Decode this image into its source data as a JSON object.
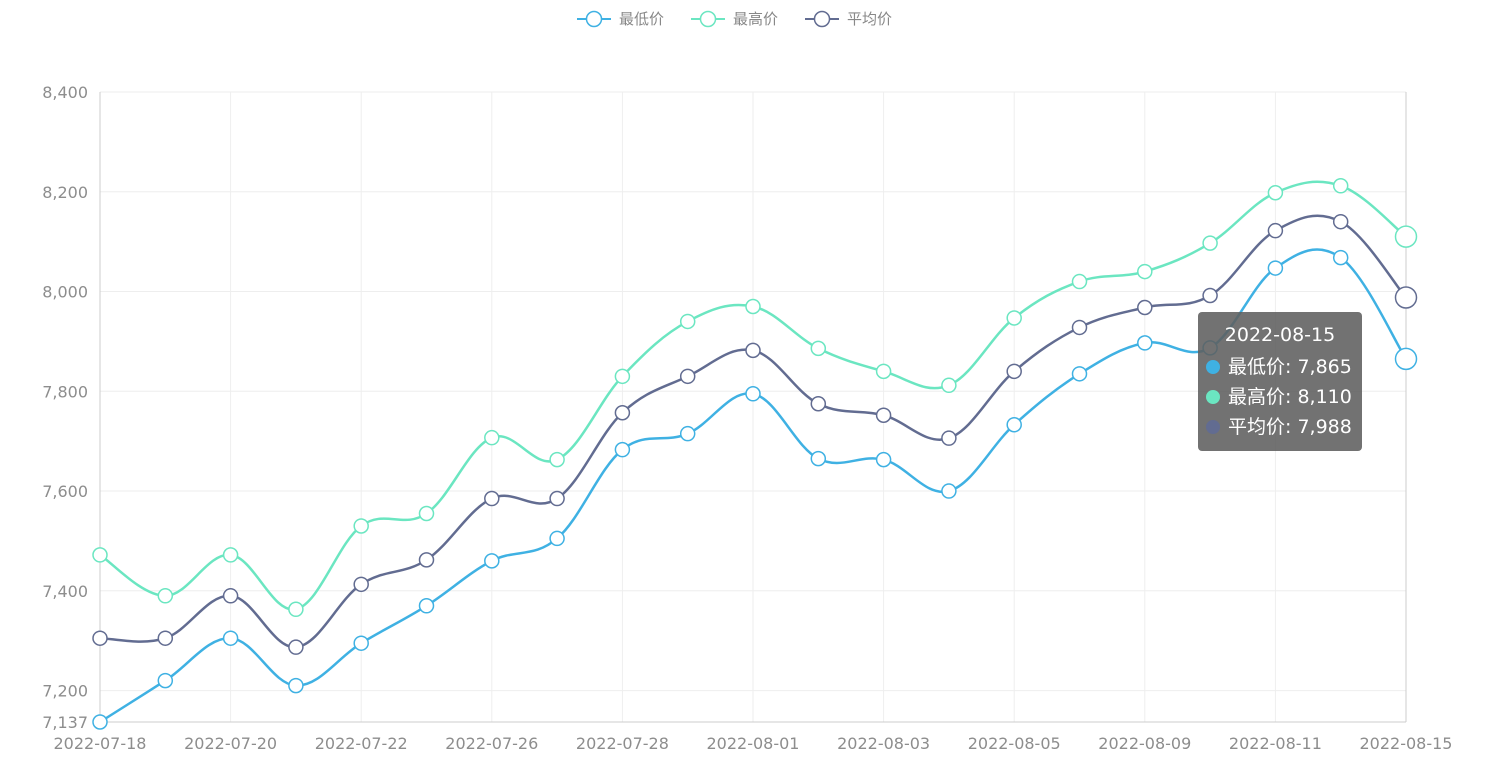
{
  "chart_data": {
    "type": "line",
    "smooth": true,
    "x": [
      "2022-07-18",
      "2022-07-19",
      "2022-07-20",
      "2022-07-21",
      "2022-07-22",
      "2022-07-25",
      "2022-07-26",
      "2022-07-27",
      "2022-07-28",
      "2022-07-29",
      "2022-08-01",
      "2022-08-02",
      "2022-08-03",
      "2022-08-04",
      "2022-08-05",
      "2022-08-08",
      "2022-08-09",
      "2022-08-10",
      "2022-08-11",
      "2022-08-12",
      "2022-08-15"
    ],
    "tick_labels": [
      "2022-07-18",
      "2022-07-20",
      "2022-07-22",
      "2022-07-26",
      "2022-07-28",
      "2022-08-01",
      "2022-08-03",
      "2022-08-05",
      "2022-08-09",
      "2022-08-11",
      "2022-08-15"
    ],
    "ylim": [
      7137,
      8400
    ],
    "y_ticks": [
      7137,
      7200,
      7400,
      7600,
      7800,
      8000,
      8200,
      8400
    ],
    "y_tick_labels": [
      "7,137",
      "7,200",
      "7,400",
      "7,600",
      "7,800",
      "8,000",
      "8,200",
      "8,400"
    ],
    "grid": true,
    "legend_position": "top-center",
    "series": [
      {
        "name": "最低价",
        "color": "#3fb1e3",
        "values": [
          7137,
          7220,
          7305,
          7210,
          7295,
          7370,
          7460,
          7505,
          7683,
          7715,
          7795,
          7665,
          7663,
          7600,
          7733,
          7835,
          7897,
          7887,
          8047,
          8068,
          7865
        ]
      },
      {
        "name": "最高价",
        "color": "#6be6c1",
        "values": [
          7472,
          7390,
          7472,
          7363,
          7530,
          7555,
          7707,
          7663,
          7830,
          7940,
          7970,
          7886,
          7840,
          7812,
          7947,
          8020,
          8040,
          8097,
          8198,
          8212,
          8110
        ]
      },
      {
        "name": "平均价",
        "color": "#626c91",
        "values": [
          7305,
          7305,
          7390,
          7287,
          7413,
          7462,
          7585,
          7585,
          7757,
          7830,
          7882,
          7775,
          7752,
          7706,
          7840,
          7928,
          7968,
          7992,
          8122,
          8140,
          7988
        ]
      }
    ],
    "tooltip": {
      "title": "2022-08-15",
      "rows": [
        {
          "label": "最低价: 7,865",
          "color": "#3fb1e3"
        },
        {
          "label": "最高价: 8,110",
          "color": "#6be6c1"
        },
        {
          "label": "平均价: 7,988",
          "color": "#626c91"
        }
      ]
    }
  }
}
